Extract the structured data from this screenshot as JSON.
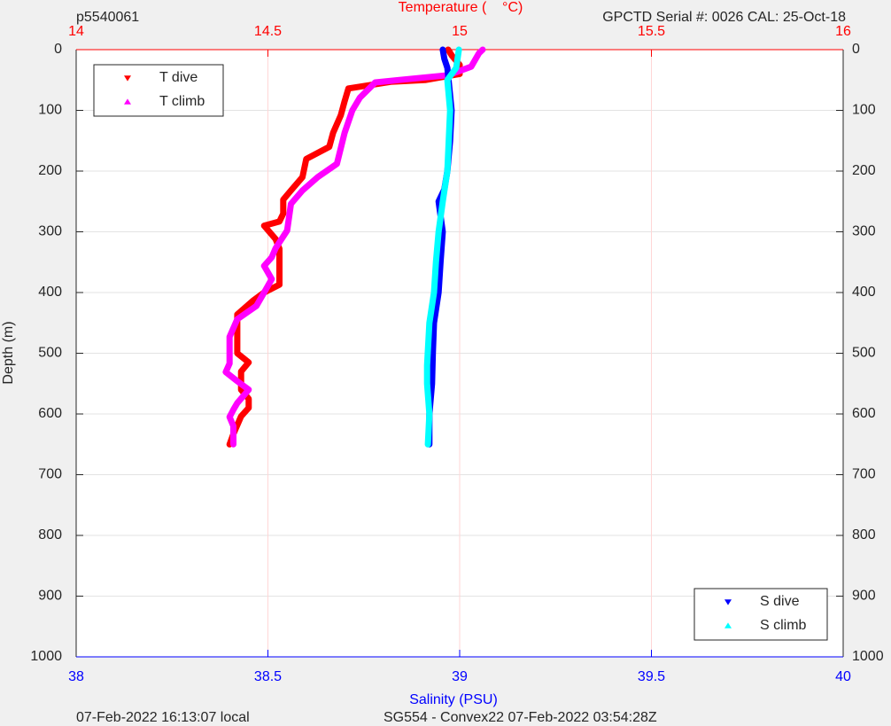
{
  "chart_data": {
    "type": "profile",
    "title": "Temperature (    °C)",
    "xlabel": "Salinity (PSU)",
    "ylabel": "Depth (m)",
    "annotations": {
      "dive_id": "p5540061",
      "sensor": "GPCTD Serial #: 0026 CAL: 25-Oct-18",
      "local_time": "07-Feb-2022 16:13:07 local",
      "mission": "SG554 - Convex22 07-Feb-2022 03:54:28Z"
    },
    "ylim": [
      0,
      1000
    ],
    "yticks": [
      0,
      100,
      200,
      300,
      400,
      500,
      600,
      700,
      800,
      900,
      1000
    ],
    "y_reversed": true,
    "xlim": [
      38,
      40
    ],
    "xticks": [
      38,
      38.5,
      39,
      39.5,
      40
    ],
    "x_color": "#0000ff",
    "x2lim": [
      14,
      16
    ],
    "x2ticks": [
      14,
      14.5,
      15,
      15.5,
      16
    ],
    "x2_color": "#ff0000",
    "grid": true,
    "series": [
      {
        "name": "T dive",
        "color": "#ff0000",
        "marker": "down",
        "axis": "x2",
        "legend": "upper left",
        "x": [
          14.97,
          14.98,
          15.0,
          15.0,
          14.91,
          14.82,
          14.71,
          14.7,
          14.69,
          14.67,
          14.66,
          14.6,
          14.59,
          14.56,
          14.54,
          14.54,
          14.53,
          14.49,
          14.52,
          14.53,
          14.53,
          14.53,
          14.49,
          14.46,
          14.42,
          14.42,
          14.42,
          14.45,
          14.43,
          14.43,
          14.45,
          14.45,
          14.43,
          14.41,
          14.4
        ],
        "depth": [
          0,
          10,
          25,
          40,
          50,
          53,
          64,
          85,
          108,
          137,
          160,
          180,
          210,
          232,
          247,
          270,
          283,
          290,
          312,
          328,
          357,
          387,
          400,
          414,
          436,
          472,
          500,
          515,
          530,
          560,
          575,
          590,
          604,
          633,
          650
        ]
      },
      {
        "name": "T climb",
        "color": "#ff00ff",
        "marker": "up",
        "axis": "x2",
        "legend": "upper left",
        "x": [
          15.06,
          15.05,
          15.03,
          14.97,
          14.84,
          14.78,
          14.74,
          14.72,
          14.7,
          14.68,
          14.63,
          14.59,
          14.56,
          14.55,
          14.52,
          14.51,
          14.49,
          14.51,
          14.49,
          14.47,
          14.42,
          14.4,
          14.4,
          14.39,
          14.42,
          14.45,
          14.42,
          14.41,
          14.4,
          14.41,
          14.41
        ],
        "depth": [
          0,
          6,
          28,
          42,
          50,
          54,
          79,
          100,
          137,
          188,
          210,
          232,
          254,
          298,
          327,
          342,
          356,
          378,
          400,
          422,
          444,
          473,
          517,
          531,
          546,
          560,
          582,
          593,
          605,
          620,
          650
        ]
      },
      {
        "name": "S dive",
        "color": "#0000ff",
        "marker": "down",
        "axis": "x",
        "legend": "lower right",
        "x": [
          38.956,
          38.96,
          38.968,
          38.979,
          38.975,
          38.968,
          38.96,
          38.945,
          38.956,
          38.95,
          38.945,
          38.933,
          38.93,
          38.928,
          38.921,
          38.921
        ],
        "depth": [
          0,
          15,
          30,
          100,
          150,
          200,
          230,
          250,
          300,
          350,
          400,
          450,
          500,
          550,
          600,
          650
        ]
      },
      {
        "name": "S climb",
        "color": "#00ffff",
        "marker": "up",
        "axis": "x",
        "legend": "lower right",
        "x": [
          38.998,
          38.991,
          38.968,
          38.975,
          38.968,
          38.956,
          38.945,
          38.938,
          38.933,
          38.921,
          38.915,
          38.915,
          38.921,
          38.917
        ],
        "depth": [
          0,
          30,
          50,
          100,
          200,
          250,
          300,
          350,
          400,
          450,
          520,
          550,
          600,
          650
        ]
      }
    ]
  }
}
